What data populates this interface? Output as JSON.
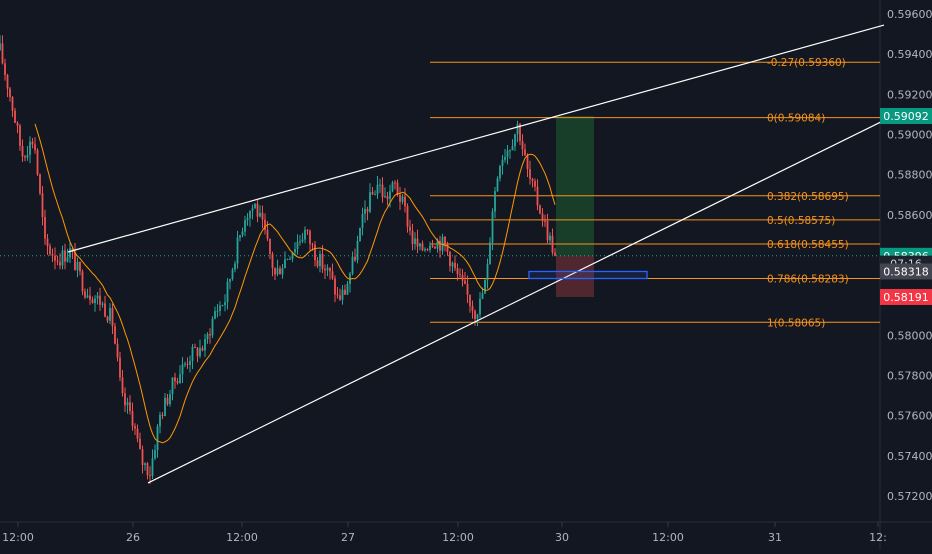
{
  "chart_data": {
    "type": "candlestick",
    "y_axis": {
      "ticks": [
        "0.59600",
        "0.59400",
        "0.59200",
        "0.59000",
        "0.58800",
        "0.58600",
        "0.58000",
        "0.57800",
        "0.57600",
        "0.57400",
        "0.57200"
      ],
      "range": [
        0.5715,
        0.5965
      ]
    },
    "x_axis": {
      "ticks": [
        "12:00",
        "26",
        "12:00",
        "27",
        "12:00",
        "30",
        "12:00",
        "31",
        "12:"
      ]
    },
    "price_badges": [
      {
        "label": "0.59092",
        "value": 0.59092,
        "bg": "#089981",
        "fg": "#ffffff",
        "variant": "current"
      },
      {
        "label": "0.58396",
        "value": 0.58396,
        "bg": "#089981",
        "fg": "#ffffff",
        "variant": "last"
      },
      {
        "label": "07:16",
        "value": 0.58357,
        "bg": "#1e222d",
        "fg": "#d1d4dc",
        "variant": "countdown"
      },
      {
        "label": "0.58318",
        "value": 0.58318,
        "bg": "#434651",
        "fg": "#ffffff",
        "variant": "level"
      },
      {
        "label": "0.58191",
        "value": 0.58191,
        "bg": "#f23645",
        "fg": "#ffffff",
        "variant": "stop"
      }
    ],
    "fibonacci": [
      {
        "label": "-0.27(0.59360)",
        "value": 0.5936
      },
      {
        "label": "0(0.59084)",
        "value": 0.59084
      },
      {
        "label": "0.382(0.58695)",
        "value": 0.58695
      },
      {
        "label": "0.5(0.58575)",
        "value": 0.58575
      },
      {
        "label": "0.618(0.58455)",
        "value": 0.58455
      },
      {
        "label": "0.786(0.58283)",
        "value": 0.58283
      },
      {
        "label": "1(0.58065)",
        "value": 0.58065
      }
    ],
    "current_price": 0.58396,
    "position": {
      "entry": 0.58396,
      "target": 0.59092,
      "stop": 0.58191
    },
    "zone": {
      "low": 0.58283,
      "high": 0.58318
    },
    "colors": {
      "background": "#131722",
      "up": "#26a69a",
      "down": "#ef5350",
      "fib": "#f7931a",
      "ma": "#ff9800",
      "trendline": "#ffffff",
      "axis_text": "#b2b5be",
      "zone_border": "#2962ff"
    }
  }
}
